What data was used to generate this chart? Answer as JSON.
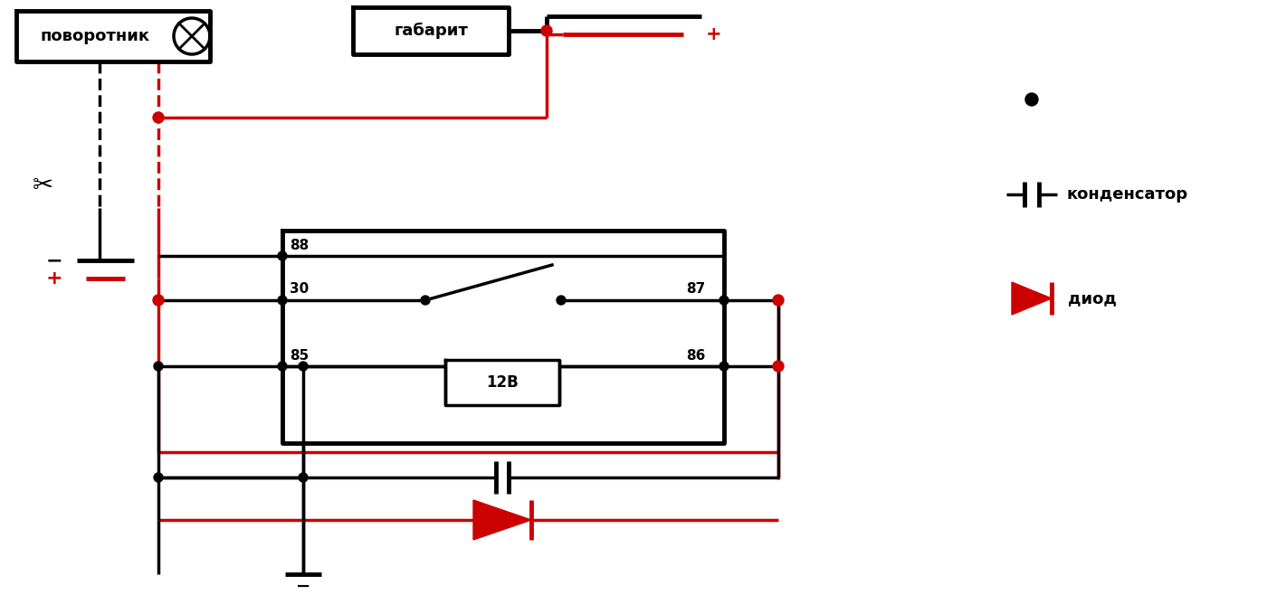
{
  "bg_color": "#ffffff",
  "black": "#000000",
  "red": "#cc0000",
  "lw": 2.5,
  "tlw": 3.5,
  "figsize": [
    14.0,
    6.58
  ],
  "dpi": 100,
  "legend_capacitor_label": "конденсатор",
  "legend_diode_label": "диод",
  "povornik_label": "поворотник",
  "gabarit_label": "габарит",
  "label_12v": "12В",
  "minus": "−",
  "plus": "+"
}
